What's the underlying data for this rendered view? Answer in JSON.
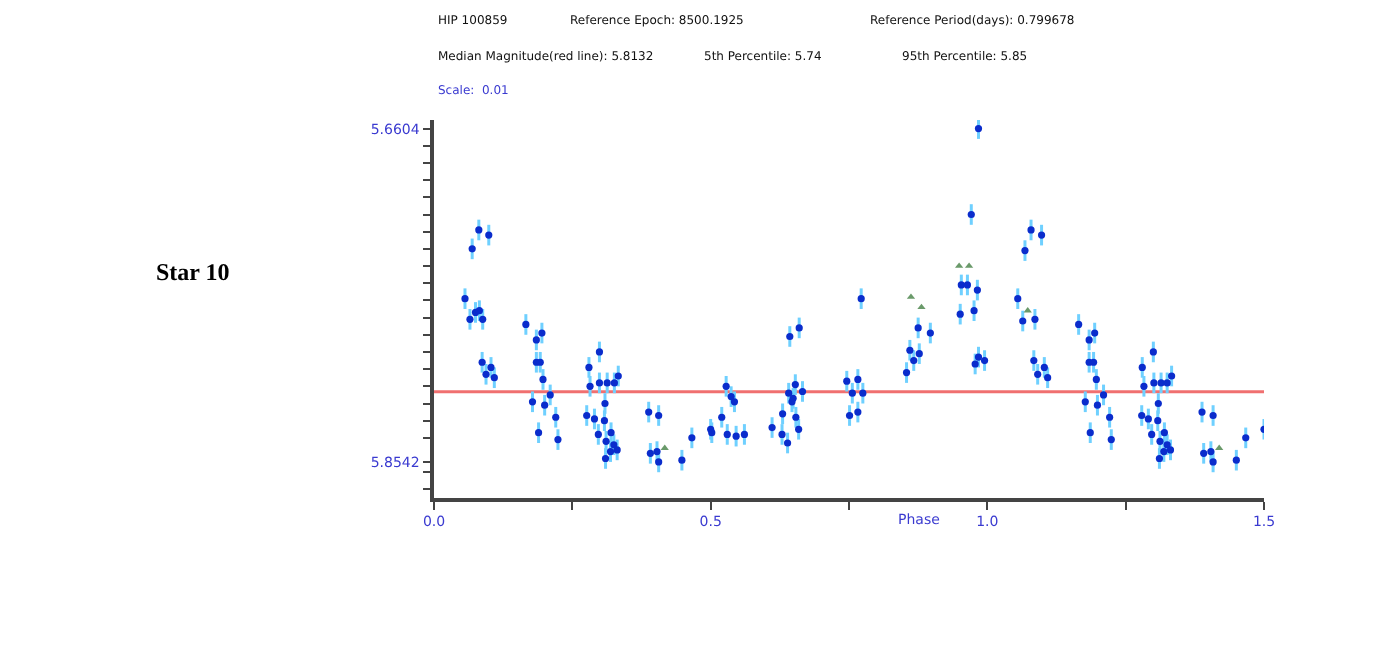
{
  "chart_data": {
    "type": "scatter",
    "annotations": [
      "HIP 100859",
      "Reference Epoch: 8500.1925",
      "Reference Period(days): 0.799678",
      "Median Magnitude(red line): 5.8132",
      "5th Percentile: 5.74",
      "95th Percentile: 5.85",
      "Scale:  0.01",
      "Star 10"
    ],
    "xlabel": "Phase",
    "xlim": [
      0,
      1.5
    ],
    "xticks": [
      {
        "value": 0,
        "label": "0.0"
      },
      {
        "value": 0.25,
        "label": null
      },
      {
        "value": 0.5,
        "label": "0.5"
      },
      {
        "value": 0.75,
        "label": null
      },
      {
        "value": 1.0,
        "label": "1.0"
      },
      {
        "value": 1.25,
        "label": null
      },
      {
        "value": 1.5,
        "label": "1.5"
      }
    ],
    "ylim": [
      5.875,
      5.655
    ],
    "yticks": [
      5.6604,
      {
        "value": 5.67,
        "label": null
      },
      {
        "value": 5.68,
        "label": null
      },
      {
        "value": 5.69,
        "label": null
      },
      {
        "value": 5.7,
        "label": null
      },
      {
        "value": 5.71,
        "label": null
      },
      {
        "value": 5.72,
        "label": null
      },
      {
        "value": 5.73,
        "label": null
      },
      {
        "value": 5.74,
        "label": null
      },
      {
        "value": 5.75,
        "label": null
      },
      {
        "value": 5.76,
        "label": null
      },
      {
        "value": 5.77,
        "label": null
      },
      {
        "value": 5.78,
        "label": null
      },
      {
        "value": 5.79,
        "label": null
      },
      {
        "value": 5.8,
        "label": null
      },
      {
        "value": 5.81,
        "label": null
      },
      {
        "value": 5.82,
        "label": null
      },
      {
        "value": 5.83,
        "label": null
      },
      {
        "value": 5.84,
        "label": null
      },
      5.8542,
      {
        "value": 5.86,
        "label": null
      },
      {
        "value": 5.87,
        "label": null
      }
    ],
    "ref_lines": [
      {
        "axis": "y",
        "value": 5.8132,
        "color": "#f07070"
      }
    ],
    "grid": false,
    "series": [
      {
        "color": "#0a2ccc",
        "marker": "circle",
        "x": [
          0.056,
          0.065,
          0.069,
          0.075,
          0.081,
          0.082,
          0.088,
          0.099,
          0.087,
          0.094,
          0.103,
          0.109,
          0.166,
          0.185,
          0.195,
          0.185,
          0.192,
          0.197,
          0.178,
          0.189,
          0.2,
          0.21,
          0.22,
          0.224,
          0.28,
          0.282,
          0.299,
          0.299,
          0.313,
          0.326,
          0.333,
          0.276,
          0.29,
          0.309,
          0.308,
          0.297,
          0.311,
          0.31,
          0.32,
          0.325,
          0.331,
          0.319,
          0.388,
          0.391,
          0.406,
          0.403,
          0.406,
          0.448,
          0.466,
          0.5,
          0.502,
          0.52,
          0.528,
          0.537,
          0.543,
          0.53,
          0.546,
          0.561,
          0.611,
          0.63,
          0.641,
          0.643,
          0.66,
          0.629,
          0.639,
          0.647,
          0.653,
          0.654,
          0.659,
          0.666,
          0.649,
          0.746,
          0.751,
          0.756,
          0.766,
          0.766,
          0.775,
          0.772,
          0.854,
          0.86,
          0.867,
          0.877,
          0.875,
          0.897,
          0.951,
          0.953,
          0.964,
          0.971,
          0.976,
          0.982,
          0.984,
          0.978,
          0.984,
          0.995,
          1.055,
          1.064,
          1.068,
          1.079,
          1.086,
          1.098,
          1.084,
          1.091,
          1.103,
          1.109,
          1.165,
          1.184,
          1.194,
          1.184,
          1.192,
          1.197,
          1.177,
          1.186,
          1.199,
          1.21,
          1.221,
          1.224,
          1.28,
          1.283,
          1.3,
          1.301,
          1.314,
          1.325,
          1.333,
          1.279,
          1.291,
          1.309,
          1.308,
          1.297,
          1.312,
          1.311,
          1.32,
          1.325,
          1.331,
          1.319,
          1.388,
          1.391,
          1.408,
          1.404,
          1.408,
          1.45,
          1.467,
          1.5
        ],
        "values": [
          5.759,
          5.771,
          5.73,
          5.767,
          5.719,
          5.766,
          5.771,
          5.722,
          5.796,
          5.803,
          5.799,
          5.805,
          5.774,
          5.783,
          5.779,
          5.796,
          5.796,
          5.806,
          5.819,
          5.837,
          5.821,
          5.815,
          5.828,
          5.841,
          5.799,
          5.81,
          5.79,
          5.808,
          5.808,
          5.808,
          5.804,
          5.827,
          5.829,
          5.82,
          5.83,
          5.838,
          5.842,
          5.852,
          5.837,
          5.844,
          5.847,
          5.848,
          5.825,
          5.849,
          5.827,
          5.848,
          5.854,
          5.853,
          5.84,
          5.835,
          5.837,
          5.828,
          5.81,
          5.816,
          5.819,
          5.838,
          5.839,
          5.838,
          5.834,
          5.826,
          5.814,
          5.781,
          5.776,
          5.838,
          5.843,
          5.819,
          5.809,
          5.828,
          5.835,
          5.813,
          5.817,
          5.807,
          5.827,
          5.814,
          5.806,
          5.825,
          5.814,
          5.759,
          5.802,
          5.789,
          5.795,
          5.791,
          5.776,
          5.779,
          5.768,
          5.751,
          5.751,
          5.71,
          5.766,
          5.754,
          5.66,
          5.797,
          5.793,
          5.795,
          5.759,
          5.772,
          5.731,
          5.719,
          5.771,
          5.722,
          5.795,
          5.803,
          5.799,
          5.805,
          5.774,
          5.783,
          5.779,
          5.796,
          5.796,
          5.806,
          5.819,
          5.837,
          5.821,
          5.815,
          5.828,
          5.841,
          5.799,
          5.81,
          5.79,
          5.808,
          5.808,
          5.808,
          5.804,
          5.827,
          5.829,
          5.82,
          5.83,
          5.838,
          5.842,
          5.852,
          5.837,
          5.844,
          5.847,
          5.848,
          5.825,
          5.849,
          5.827,
          5.848,
          5.854,
          5.853,
          5.84,
          5.835
        ],
        "errors": [
          0.006,
          0.006,
          0.006,
          0.006,
          0.006,
          0.006,
          0.006,
          0.006,
          0.006,
          0.006,
          0.006,
          0.006,
          0.006,
          0.006,
          0.006,
          0.006,
          0.006,
          0.006,
          0.006,
          0.006,
          0.006,
          0.006,
          0.006,
          0.006,
          0.006,
          0.006,
          0.006,
          0.006,
          0.006,
          0.006,
          0.006,
          0.006,
          0.006,
          0.006,
          0.006,
          0.006,
          0.006,
          0.006,
          0.006,
          0.006,
          0.006,
          0.006,
          0.006,
          0.006,
          0.006,
          0.006,
          0.006,
          0.006,
          0.006,
          0.006,
          0.006,
          0.006,
          0.006,
          0.006,
          0.006,
          0.006,
          0.006,
          0.006,
          0.006,
          0.006,
          0.006,
          0.006,
          0.006,
          0.006,
          0.006,
          0.006,
          0.006,
          0.006,
          0.006,
          0.006,
          0.006,
          0.006,
          0.006,
          0.006,
          0.006,
          0.006,
          0.006,
          0.006,
          0.006,
          0.006,
          0.006,
          0.006,
          0.006,
          0.006,
          0.006,
          0.006,
          0.006,
          0.006,
          0.006,
          0.006,
          0.006,
          0.006,
          0.006,
          0.006,
          0.006,
          0.006,
          0.006,
          0.006,
          0.006,
          0.006,
          0.006,
          0.006,
          0.006,
          0.006,
          0.006,
          0.006,
          0.006,
          0.006,
          0.006,
          0.006,
          0.006,
          0.006,
          0.006,
          0.006,
          0.006,
          0.006,
          0.006,
          0.006,
          0.006,
          0.006,
          0.006,
          0.006,
          0.006,
          0.006,
          0.006,
          0.006,
          0.006,
          0.006,
          0.006,
          0.006,
          0.006,
          0.006,
          0.006,
          0.006,
          0.006,
          0.006,
          0.006,
          0.006,
          0.006,
          0.006,
          0.006,
          0.006
        ]
      },
      {
        "color": "#6a9a6a",
        "marker": "triangle",
        "x": [
          0.417,
          0.862,
          0.881,
          0.949,
          0.967,
          1.073,
          1.419
        ],
        "values": [
          5.846,
          5.758,
          5.764,
          5.74,
          5.74,
          5.766,
          5.846
        ]
      }
    ]
  }
}
